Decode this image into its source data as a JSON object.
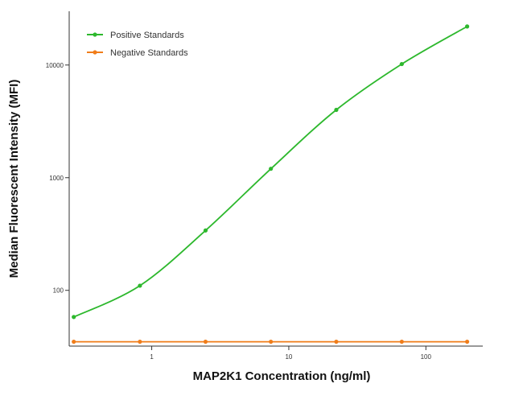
{
  "chart_data": {
    "type": "line",
    "xlabel": "MAP2K1 Concentration (ng/ml)",
    "ylabel": "Median  Fluorescent Intensity  (MFI)",
    "x_scale": "log",
    "y_scale": "log",
    "xlim": [
      0.25,
      260
    ],
    "ylim": [
      32,
      30000
    ],
    "x_ticks": [
      1,
      10,
      100
    ],
    "x_tick_labels": [
      "1",
      "10",
      "100"
    ],
    "y_ticks": [
      100,
      1000,
      10000
    ],
    "y_tick_labels": [
      "100",
      "1000",
      "10000"
    ],
    "legend_position": "top-left",
    "series": [
      {
        "name": "Positive Standards",
        "color": "#2db82d",
        "x": [
          0.27,
          0.82,
          2.47,
          7.4,
          22.2,
          66.7,
          200
        ],
        "y": [
          58,
          110,
          340,
          1200,
          4000,
          10200,
          22000
        ]
      },
      {
        "name": "Negative Standards",
        "color": "#f07d1a",
        "x": [
          0.27,
          0.82,
          2.47,
          7.4,
          22.2,
          66.7,
          200
        ],
        "y": [
          35,
          35,
          35,
          35,
          35,
          35,
          35
        ]
      }
    ]
  }
}
